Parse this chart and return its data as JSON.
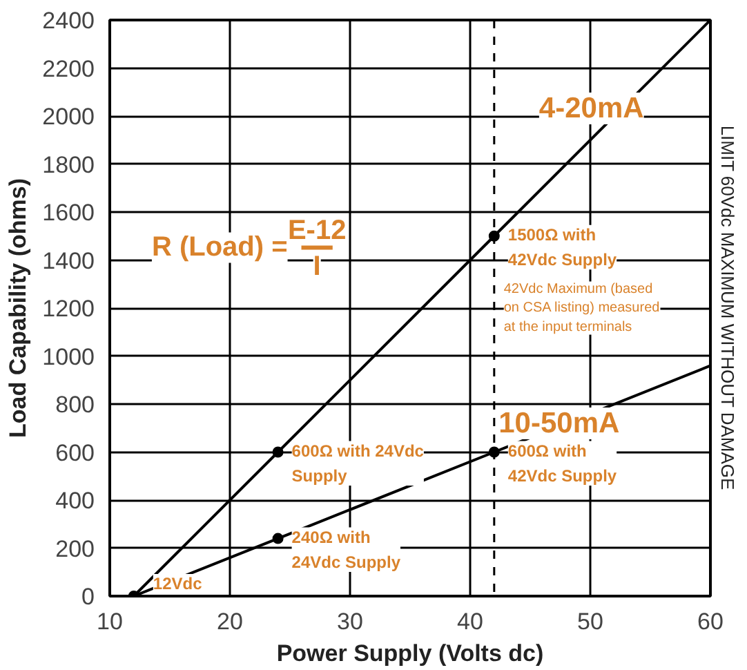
{
  "chart_data": {
    "type": "line",
    "xlabel": "Power Supply (Volts dc)",
    "ylabel": "Load Capability (ohms)",
    "xlim": [
      10,
      60
    ],
    "xticks": [
      10,
      20,
      30,
      40,
      50,
      60
    ],
    "ylim": [
      0,
      2400
    ],
    "yticks": [
      0,
      200,
      400,
      600,
      800,
      1000,
      1200,
      1400,
      1600,
      1800,
      2000,
      2200,
      2400
    ],
    "grid": true,
    "marker": "none",
    "line_style": "solid",
    "series": [
      {
        "name": "4-20mA",
        "color": "#000000",
        "x": [
          12,
          24,
          42,
          60
        ],
        "values": [
          0,
          600,
          1500,
          2400
        ]
      },
      {
        "name": "10-50mA",
        "color": "#000000",
        "x": [
          12,
          24,
          42,
          60
        ],
        "values": [
          0,
          240,
          600,
          960
        ]
      },
      {
        "type": "scatter",
        "color": "#000000",
        "marker": "circle",
        "x": [
          12,
          24,
          42,
          24,
          42
        ],
        "values": [
          0,
          600,
          1500,
          240,
          600
        ]
      }
    ],
    "ref_lines": [
      {
        "axis": "x",
        "value": 42,
        "label": "42Vdc Maximum (based\non CSA listing) measured\nat the input terminals",
        "color": "#000000",
        "line_style": "dashed"
      }
    ],
    "annotations": [
      {
        "text": "12Vdc",
        "x": 12,
        "y": 0
      },
      {
        "text": "600Ω with 24Vdc\nSupply",
        "x": 24,
        "y": 600
      },
      {
        "text": "240Ω with\n24Vdc Supply",
        "x": 24,
        "y": 240
      },
      {
        "text": "1500Ω with\n42Vdc Supply",
        "x": 42,
        "y": 1500
      },
      {
        "text": "600Ω with\n42Vdc Supply",
        "x": 42,
        "y": 600
      },
      "R (Load) =",
      "E-12",
      "I",
      "LIMIT 60Vdc MAXIMUM WITHOUT DAMAGE"
    ]
  }
}
